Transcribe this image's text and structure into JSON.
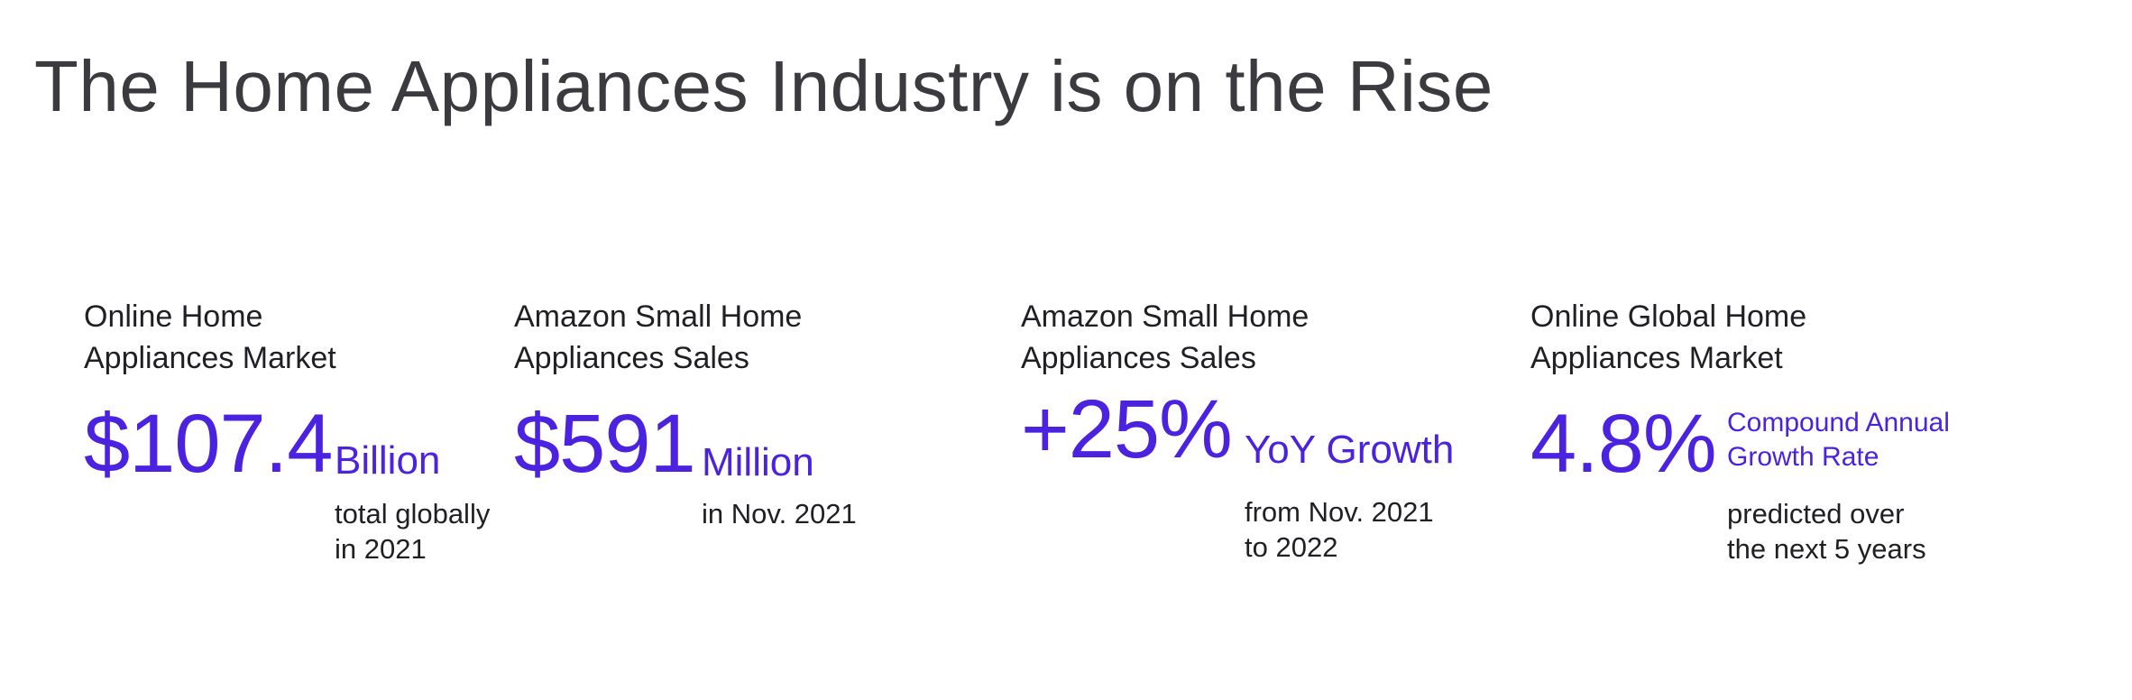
{
  "title": "The Home Appliances Industry is on the Rise",
  "stats": [
    {
      "label_line1": "Online Home",
      "label_line2": "Appliances Market",
      "value": "$107.4",
      "unit": "Billion",
      "note_line1": "total globally",
      "note_line2": "in 2021"
    },
    {
      "label_line1": "Amazon Small Home",
      "label_line2": "Appliances Sales",
      "value": "$591",
      "unit": "Million",
      "note_line1": "in Nov. 2021",
      "note_line2": ""
    },
    {
      "label_line1": "Amazon Small Home",
      "label_line2": "Appliances Sales",
      "value": "+25%",
      "unit": "YoY Growth",
      "note_line1": "from Nov. 2021",
      "note_line2": "to 2022"
    },
    {
      "label_line1": "Online Global Home",
      "label_line2": "Appliances Market",
      "value": "4.8%",
      "unit_line1": "Compound Annual",
      "unit_line2": "Growth Rate",
      "note_line1": "predicted over",
      "note_line2": "the next 5 years"
    }
  ],
  "colors": {
    "accent": "#4a22df",
    "title": "#3a3a3f",
    "text": "#1f1f24"
  }
}
